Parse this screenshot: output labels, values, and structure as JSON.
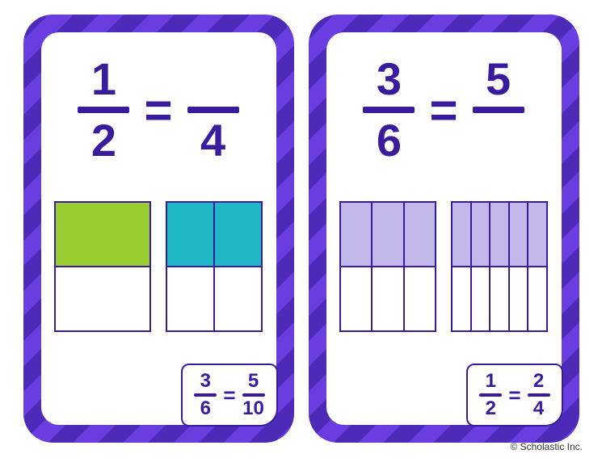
{
  "ink_color": "#3a1b9e",
  "stripe_a": "#4d2bb8",
  "stripe_b": "#6a3de0",
  "cards": [
    {
      "eq_left": {
        "num": "1",
        "den": "2"
      },
      "eq_right": {
        "num": "",
        "den": "4"
      },
      "models": [
        {
          "rows": 2,
          "cols": 1,
          "filled_top_count": 1,
          "fill_color": "#9acc2f"
        },
        {
          "rows": 2,
          "cols": 2,
          "filled_top_count": 2,
          "fill_color": "#1fb8c4"
        }
      ],
      "answer_left": {
        "num": "3",
        "den": "6"
      },
      "answer_right": {
        "num": "5",
        "den": "10"
      }
    },
    {
      "eq_left": {
        "num": "3",
        "den": "6"
      },
      "eq_right": {
        "num": "5",
        "den": ""
      },
      "models": [
        {
          "rows": 2,
          "cols": 3,
          "filled_top_count": 3,
          "fill_color": "#c4b8ea"
        },
        {
          "rows": 2,
          "cols": 5,
          "filled_top_count": 5,
          "fill_color": "#c4b8ea"
        }
      ],
      "answer_left": {
        "num": "1",
        "den": "2"
      },
      "answer_right": {
        "num": "2",
        "den": "4"
      }
    }
  ],
  "copyright": "© Scholastic Inc."
}
